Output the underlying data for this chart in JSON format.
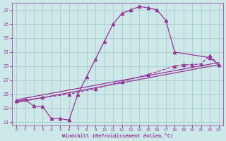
{
  "xlabel": "Windchill (Refroidissement éolien,°C)",
  "background_color": "#cce8e8",
  "grid_color": "#aacccc",
  "line_color": "#993399",
  "xlim": [
    -0.5,
    23.5
  ],
  "ylim": [
    20.5,
    38
  ],
  "yticks": [
    21,
    23,
    25,
    27,
    29,
    31,
    33,
    35,
    37
  ],
  "xticks": [
    0,
    1,
    2,
    3,
    4,
    5,
    6,
    7,
    8,
    9,
    10,
    11,
    12,
    13,
    14,
    15,
    16,
    17,
    18,
    19,
    20,
    21,
    22,
    23
  ],
  "series": [
    {
      "x": [
        0,
        1,
        2,
        3,
        4,
        5,
        6,
        7,
        8,
        9,
        10,
        11,
        12,
        13,
        14,
        15,
        16,
        17,
        18,
        22,
        23
      ],
      "y": [
        24.0,
        24.2,
        23.3,
        23.2,
        21.5,
        21.5,
        21.3,
        25.0,
        27.5,
        30.0,
        32.5,
        35.0,
        36.5,
        37.0,
        37.5,
        37.3,
        37.0,
        35.5,
        31.0,
        30.2,
        29.2
      ],
      "marker": "^",
      "markersize": 3,
      "linestyle": "-"
    },
    {
      "x": [
        0,
        3,
        6,
        9,
        12,
        15,
        18,
        19,
        20,
        21,
        22,
        23
      ],
      "y": [
        24.0,
        24.5,
        25.0,
        25.8,
        26.8,
        27.8,
        29.0,
        29.2,
        29.2,
        29.3,
        30.5,
        29.2
      ],
      "marker": "^",
      "markersize": 3,
      "linestyle": "--"
    },
    {
      "x": [
        0,
        23
      ],
      "y": [
        24.2,
        29.5
      ],
      "marker": null,
      "markersize": 0,
      "linestyle": "-"
    },
    {
      "x": [
        0,
        23
      ],
      "y": [
        23.8,
        29.2
      ],
      "marker": null,
      "markersize": 0,
      "linestyle": "-"
    }
  ]
}
